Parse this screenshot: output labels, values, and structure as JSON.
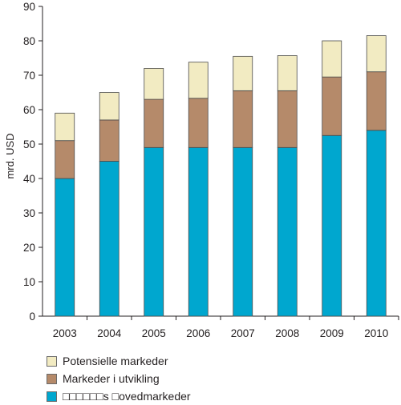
{
  "chart_data": {
    "type": "bar",
    "stacked": true,
    "categories": [
      "2003",
      "2004",
      "2005",
      "2006",
      "2007",
      "2008",
      "2009",
      "2010"
    ],
    "series": [
      {
        "name": "□□□□□□s □ovedmarkeder",
        "values": [
          40,
          45,
          49,
          49,
          49,
          49,
          52.5,
          54
        ],
        "color": "#00a7cf"
      },
      {
        "name": "Markeder i utvikling",
        "values": [
          11,
          12,
          14,
          14.3,
          16.5,
          16.5,
          17,
          17
        ],
        "color": "#b58a6a"
      },
      {
        "name": "Potensielle markeder",
        "values": [
          8,
          8,
          9,
          10.5,
          10,
          10.2,
          10.5,
          10.5
        ],
        "color": "#f2ebc2"
      }
    ],
    "ylabel": "mrd. USD",
    "xlabel": "",
    "ylim": [
      0,
      90
    ],
    "yticks": [
      0,
      10,
      20,
      30,
      40,
      50,
      60,
      70,
      80,
      90
    ],
    "grid": false,
    "legend_position": "bottom"
  }
}
